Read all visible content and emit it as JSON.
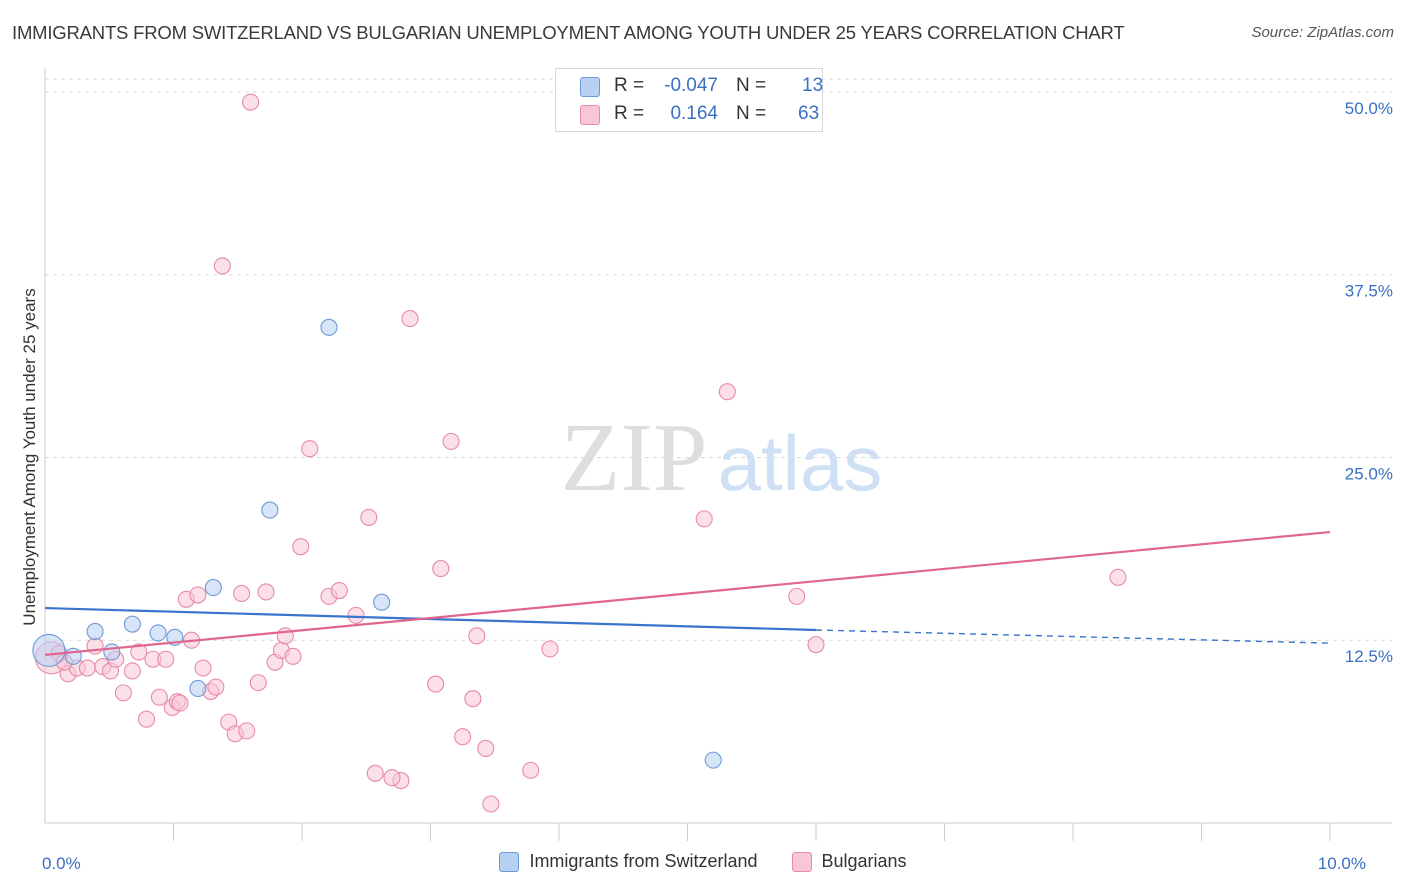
{
  "title": "IMMIGRANTS FROM SWITZERLAND VS BULGARIAN UNEMPLOYMENT AMONG YOUTH UNDER 25 YEARS CORRELATION CHART",
  "source": "Source: ZipAtlas.com",
  "watermark": {
    "zip": "ZIP",
    "atlas": "atlas"
  },
  "colors": {
    "blue_fill": "#b8d0f2",
    "blue_stroke": "#6e9ad8",
    "blue_line": "#3a74cc",
    "pink_fill": "#f8c6d6",
    "pink_stroke": "#e88aa8",
    "pink_line": "#e0668f",
    "axis_text": "#3a6fc2",
    "grid": "#d9d9d9"
  },
  "legend": {
    "rows": [
      {
        "r_label": "R =",
        "r_value": "-0.047",
        "n_label": "N =",
        "n_value": "13",
        "series": "blue"
      },
      {
        "r_label": "R =",
        "r_value": "0.164",
        "n_label": "N =",
        "n_value": "63",
        "series": "pink"
      }
    ]
  },
  "chart_data": {
    "type": "scatter",
    "title": "IMMIGRANTS FROM SWITZERLAND VS BULGARIAN UNEMPLOYMENT AMONG YOUTH UNDER 25 YEARS CORRELATION CHART",
    "xlabel": "",
    "ylabel": "Unemployment Among Youth under 25 years",
    "xlim": [
      0,
      10
    ],
    "ylim": [
      0,
      51.5
    ],
    "x_tick_labels": [
      {
        "value": 0,
        "label": "0.0%"
      },
      {
        "value": 10,
        "label": "10.0%"
      }
    ],
    "y_tick_labels": [
      {
        "value": 12.5,
        "label": "12.5%"
      },
      {
        "value": 25,
        "label": "25.0%"
      },
      {
        "value": 37.5,
        "label": "37.5%"
      },
      {
        "value": 50,
        "label": "50.0%"
      }
    ],
    "x_minor_ticks": [
      1,
      2,
      3,
      4,
      5,
      6,
      7,
      8,
      9,
      10
    ],
    "grid": true,
    "legend_position": "top-center",
    "series": [
      {
        "name": "Immigrants from Switzerland",
        "color": "blue",
        "points": [
          {
            "x": 0.03,
            "y": 11.8,
            "size": 16
          },
          {
            "x": 0.22,
            "y": 11.4
          },
          {
            "x": 0.39,
            "y": 13.1
          },
          {
            "x": 0.52,
            "y": 11.7
          },
          {
            "x": 0.68,
            "y": 13.6
          },
          {
            "x": 0.88,
            "y": 13.0
          },
          {
            "x": 1.01,
            "y": 12.7
          },
          {
            "x": 1.19,
            "y": 9.2
          },
          {
            "x": 1.31,
            "y": 16.1
          },
          {
            "x": 1.75,
            "y": 21.4
          },
          {
            "x": 2.21,
            "y": 33.9
          },
          {
            "x": 2.62,
            "y": 15.1
          },
          {
            "x": 5.2,
            "y": 4.3
          }
        ],
        "trend": {
          "x0": 0,
          "y0": 14.7,
          "x1": 6.0,
          "y1": 13.2,
          "dash_to_x": 10,
          "dash_to_y": 12.3
        }
      },
      {
        "name": "Bulgarians",
        "color": "pink",
        "points": [
          {
            "x": 0.05,
            "y": 11.3,
            "size": 16
          },
          {
            "x": 0.11,
            "y": 11.6
          },
          {
            "x": 0.18,
            "y": 10.2
          },
          {
            "x": 0.25,
            "y": 10.6
          },
          {
            "x": 0.33,
            "y": 10.6
          },
          {
            "x": 0.39,
            "y": 12.1
          },
          {
            "x": 0.45,
            "y": 10.7
          },
          {
            "x": 0.51,
            "y": 10.4
          },
          {
            "x": 0.55,
            "y": 11.2
          },
          {
            "x": 0.61,
            "y": 8.9
          },
          {
            "x": 0.68,
            "y": 10.4
          },
          {
            "x": 0.73,
            "y": 11.7
          },
          {
            "x": 0.79,
            "y": 7.1
          },
          {
            "x": 0.84,
            "y": 11.2
          },
          {
            "x": 0.89,
            "y": 8.6
          },
          {
            "x": 0.94,
            "y": 11.2
          },
          {
            "x": 0.99,
            "y": 7.9
          },
          {
            "x": 1.03,
            "y": 8.3
          },
          {
            "x": 1.1,
            "y": 15.3
          },
          {
            "x": 1.14,
            "y": 12.5
          },
          {
            "x": 1.19,
            "y": 15.6
          },
          {
            "x": 1.23,
            "y": 10.6
          },
          {
            "x": 1.29,
            "y": 9.0
          },
          {
            "x": 1.33,
            "y": 9.3
          },
          {
            "x": 1.38,
            "y": 38.1
          },
          {
            "x": 1.43,
            "y": 6.9
          },
          {
            "x": 1.48,
            "y": 6.1
          },
          {
            "x": 1.53,
            "y": 15.7
          },
          {
            "x": 1.57,
            "y": 6.3
          },
          {
            "x": 1.6,
            "y": 49.3
          },
          {
            "x": 1.66,
            "y": 9.6
          },
          {
            "x": 1.72,
            "y": 15.8
          },
          {
            "x": 1.79,
            "y": 11.0
          },
          {
            "x": 1.84,
            "y": 11.8
          },
          {
            "x": 1.87,
            "y": 12.8
          },
          {
            "x": 1.93,
            "y": 11.4
          },
          {
            "x": 1.99,
            "y": 18.9
          },
          {
            "x": 2.06,
            "y": 25.6
          },
          {
            "x": 2.21,
            "y": 15.5
          },
          {
            "x": 2.29,
            "y": 15.9
          },
          {
            "x": 2.42,
            "y": 14.2
          },
          {
            "x": 2.52,
            "y": 20.9
          },
          {
            "x": 2.57,
            "y": 3.4
          },
          {
            "x": 2.77,
            "y": 2.9
          },
          {
            "x": 2.84,
            "y": 34.5
          },
          {
            "x": 3.04,
            "y": 9.5
          },
          {
            "x": 3.08,
            "y": 17.4
          },
          {
            "x": 3.16,
            "y": 26.1
          },
          {
            "x": 3.25,
            "y": 5.9
          },
          {
            "x": 3.33,
            "y": 8.5
          },
          {
            "x": 3.36,
            "y": 12.8
          },
          {
            "x": 3.43,
            "y": 5.1
          },
          {
            "x": 3.47,
            "y": 1.3
          },
          {
            "x": 3.78,
            "y": 3.6
          },
          {
            "x": 3.93,
            "y": 11.9
          },
          {
            "x": 5.13,
            "y": 20.8
          },
          {
            "x": 5.31,
            "y": 29.5
          },
          {
            "x": 5.85,
            "y": 15.5
          },
          {
            "x": 6.0,
            "y": 12.2
          },
          {
            "x": 8.35,
            "y": 16.8
          },
          {
            "x": 0.15,
            "y": 11.0
          },
          {
            "x": 1.05,
            "y": 8.2
          },
          {
            "x": 2.7,
            "y": 3.1
          }
        ],
        "trend": {
          "x0": 0,
          "y0": 11.5,
          "x1": 10,
          "y1": 19.9
        }
      }
    ]
  },
  "bottom_legend": [
    {
      "label": "Immigrants from Switzerland",
      "series": "blue"
    },
    {
      "label": "Bulgarians",
      "series": "pink"
    }
  ]
}
